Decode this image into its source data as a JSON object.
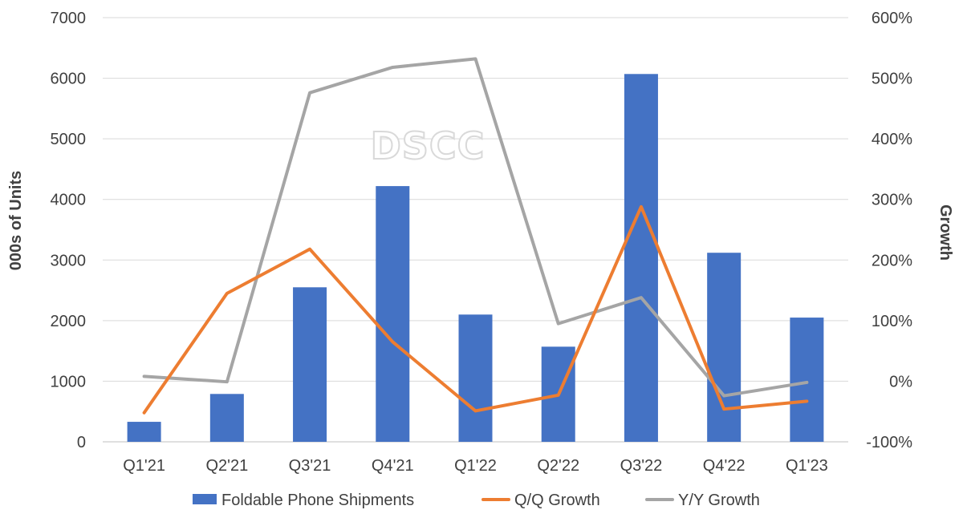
{
  "chart_data": {
    "type": "bar",
    "watermark": "DSCC",
    "categories": [
      "Q1'21",
      "Q2'21",
      "Q3'21",
      "Q4'21",
      "Q1'22",
      "Q2'22",
      "Q3'22",
      "Q4'22",
      "Q1'23"
    ],
    "y_left": {
      "label": "000s of Units",
      "range": [
        0,
        7000
      ],
      "ticks": [
        "0",
        "1000",
        "2000",
        "3000",
        "4000",
        "5000",
        "6000",
        "7000"
      ]
    },
    "y_right": {
      "label": "Growth",
      "range": [
        -100,
        600
      ],
      "ticks": [
        "-100%",
        "0%",
        "100%",
        "200%",
        "300%",
        "400%",
        "500%",
        "600%"
      ]
    },
    "series": [
      {
        "name": "Foldable Phone Shipments",
        "type": "bar",
        "axis": "left",
        "color": "#4472c4",
        "values": [
          330,
          790,
          2550,
          4220,
          2100,
          1570,
          6070,
          3120,
          2050
        ]
      },
      {
        "name": "Q/Q Growth",
        "type": "line",
        "axis": "right",
        "color": "#ed7d31",
        "values": [
          -52,
          145,
          218,
          65,
          -49,
          -23,
          288,
          -46,
          -33
        ]
      },
      {
        "name": "Y/Y Growth",
        "type": "line",
        "axis": "right",
        "color": "#a5a5a5",
        "values": [
          8,
          -1,
          476,
          518,
          532,
          95,
          138,
          -24,
          -2
        ]
      }
    ],
    "grid": true,
    "legend_position": "bottom"
  }
}
